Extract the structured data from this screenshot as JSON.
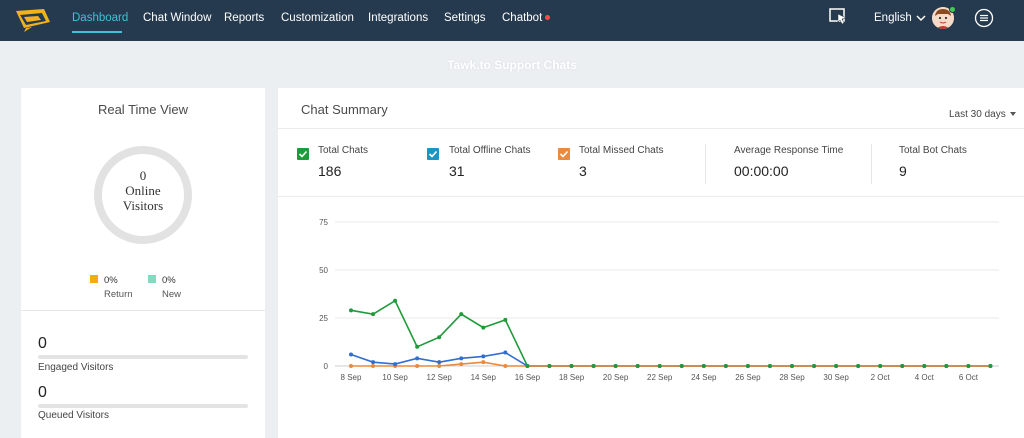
{
  "nav": {
    "items": [
      {
        "label": "Dashboard",
        "active": true
      },
      {
        "label": "Chat Window",
        "active": false
      },
      {
        "label": "Reports",
        "active": false
      },
      {
        "label": "Customization",
        "active": false
      },
      {
        "label": "Integrations",
        "active": false
      },
      {
        "label": "Settings",
        "active": false
      },
      {
        "label": "Chatbot",
        "active": false,
        "badge": "red-dot"
      }
    ],
    "language": "English",
    "icons": [
      "logo-icon",
      "cursor-window-icon",
      "chevron-down-icon",
      "avatar",
      "menu-icon"
    ]
  },
  "page_title": "Tawk.to Support Chats",
  "realtime": {
    "title": "Real Time View",
    "online_count": "0",
    "online_label_1": "Online",
    "online_label_2": "Visitors",
    "return_pct": "0%",
    "return_label": "Return",
    "new_pct": "0%",
    "new_label": "New",
    "engaged_value": "0",
    "engaged_label": "Engaged Visitors",
    "queued_value": "0",
    "queued_label": "Queued Visitors"
  },
  "summary": {
    "title": "Chat Summary",
    "range": "Last 30 days",
    "total_chats_label": "Total Chats",
    "total_chats": "186",
    "offline_label": "Total Offline Chats",
    "offline": "31",
    "missed_label": "Total Missed Chats",
    "missed": "3",
    "avg_label": "Average Response Time",
    "avg": "00:00:00",
    "bot_label": "Total Bot Chats",
    "bot": "9"
  },
  "colors": {
    "nav_bg": "#263a4f",
    "accent": "#3fc1d9",
    "total": "#1e9b3a",
    "offline": "#2f6fd1",
    "missed": "#ea8a3c",
    "return": "#f3ae06",
    "new": "#7fdcc1"
  },
  "chart_data": {
    "type": "line",
    "x": [
      "8 Sep",
      "9 Sep",
      "10 Sep",
      "11 Sep",
      "12 Sep",
      "13 Sep",
      "14 Sep",
      "15 Sep",
      "16 Sep",
      "17 Sep",
      "18 Sep",
      "19 Sep",
      "20 Sep",
      "21 Sep",
      "22 Sep",
      "23 Sep",
      "24 Sep",
      "25 Sep",
      "26 Sep",
      "27 Sep",
      "28 Sep",
      "29 Sep",
      "30 Sep",
      "1 Oct",
      "2 Oct",
      "3 Oct",
      "4 Oct",
      "5 Oct",
      "6 Oct",
      "7 Oct"
    ],
    "tick_labels": [
      "8 Sep",
      "10 Sep",
      "12 Sep",
      "14 Sep",
      "16 Sep",
      "18 Sep",
      "20 Sep",
      "22 Sep",
      "24 Sep",
      "26 Sep",
      "28 Sep",
      "30 Sep",
      "2 Oct",
      "4 Oct",
      "6 Oct"
    ],
    "y_ticks": [
      0,
      25,
      50,
      75
    ],
    "ylim": [
      0,
      80
    ],
    "grid": true,
    "legend": "none",
    "series": [
      {
        "name": "Total Chats",
        "values": [
          29,
          27,
          34,
          10,
          15,
          27,
          20,
          24,
          0,
          0,
          0,
          0,
          0,
          0,
          0,
          0,
          0,
          0,
          0,
          0,
          0,
          0,
          0,
          0,
          0,
          0,
          0,
          0,
          0,
          0
        ]
      },
      {
        "name": "Total Offline Chats",
        "values": [
          6,
          2,
          1,
          4,
          2,
          4,
          5,
          7,
          0,
          0,
          0,
          0,
          0,
          0,
          0,
          0,
          0,
          0,
          0,
          0,
          0,
          0,
          0,
          0,
          0,
          0,
          0,
          0,
          0,
          0
        ]
      },
      {
        "name": "Total Missed Chats",
        "values": [
          0,
          0,
          0,
          0,
          0,
          1,
          2,
          0,
          0,
          0,
          0,
          0,
          0,
          0,
          0,
          0,
          0,
          0,
          0,
          0,
          0,
          0,
          0,
          0,
          0,
          0,
          0,
          0,
          0,
          0
        ]
      }
    ]
  }
}
